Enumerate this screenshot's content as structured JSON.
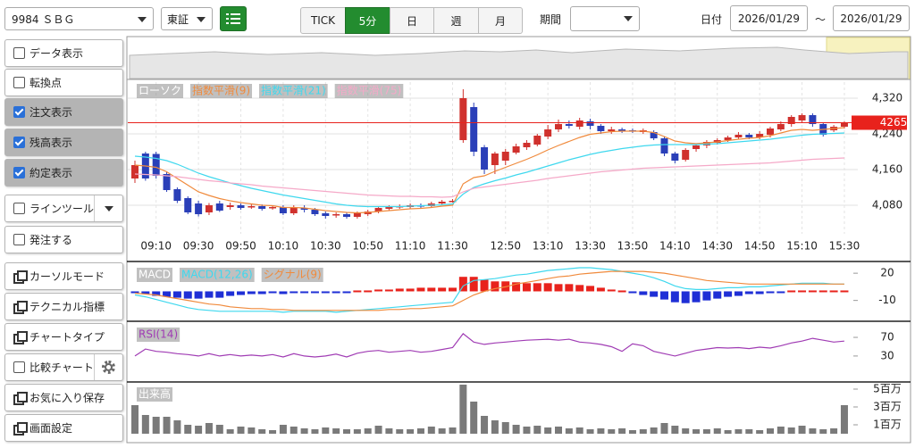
{
  "toolbar": {
    "symbol": "9984 ＳＢＧ",
    "market": "東証",
    "timeframes": [
      {
        "label": "TICK",
        "active": false
      },
      {
        "label": "5分",
        "active": true
      },
      {
        "label": "日",
        "active": false
      },
      {
        "label": "週",
        "active": false
      },
      {
        "label": "月",
        "active": false
      }
    ],
    "period_label": "期間",
    "date_label": "日付",
    "date_from": "2026/01/29",
    "date_separator": "～",
    "date_to": "2026/01/29"
  },
  "sidebar": {
    "buttons": [
      {
        "label": "データ表示",
        "kind": "check",
        "checked": false
      },
      {
        "label": "転換点",
        "kind": "check",
        "checked": false
      },
      {
        "label": "注文表示",
        "kind": "check",
        "checked": true
      },
      {
        "label": "残高表示",
        "kind": "check",
        "checked": true
      },
      {
        "label": "約定表示",
        "kind": "check",
        "checked": true
      },
      {
        "label": "ラインツール",
        "kind": "check",
        "checked": false,
        "extra": "dropdown"
      },
      {
        "label": "発注する",
        "kind": "check",
        "checked": false
      },
      {
        "label": "カーソルモード",
        "kind": "window"
      },
      {
        "label": "テクニカル指標",
        "kind": "window"
      },
      {
        "label": "チャートタイプ",
        "kind": "window"
      },
      {
        "label": "比較チャート",
        "kind": "check",
        "checked": false,
        "extra": "gear"
      },
      {
        "label": "お気に入り保存",
        "kind": "window"
      },
      {
        "label": "画面設定",
        "kind": "window"
      }
    ]
  },
  "chart_data": [
    {
      "type": "candlestick",
      "categories": [
        null,
        null,
        "09:10",
        null,
        null,
        null,
        "09:30",
        null,
        null,
        null,
        "09:50",
        null,
        null,
        null,
        "10:10",
        null,
        null,
        null,
        "10:30",
        null,
        null,
        null,
        "10:50",
        null,
        null,
        null,
        "11:10",
        null,
        null,
        null,
        "11:30",
        null,
        null,
        null,
        null,
        "12:50",
        null,
        null,
        null,
        "13:10",
        null,
        null,
        null,
        "13:30",
        null,
        null,
        null,
        "13:50",
        null,
        null,
        null,
        "14:10",
        null,
        null,
        null,
        "14:30",
        null,
        null,
        null,
        "14:50",
        null,
        null,
        null,
        "15:10",
        null,
        null,
        null,
        "15:30"
      ],
      "series": [
        {
          "name": "ローソク",
          "up_color": "#d0312d",
          "down_color": "#2a3fb8",
          "open": [
            4140,
            4196,
            4195,
            4150,
            4116,
            4096,
            4084,
            4064,
            4084,
            4076,
            4080,
            4076,
            4078,
            4074,
            4076,
            4062,
            4074,
            4070,
            4062,
            4058,
            4060,
            4054,
            4060,
            4066,
            4072,
            4076,
            4076,
            4080,
            4078,
            4084,
            4088,
            4226,
            4300,
            4210,
            4170,
            4180,
            4198,
            4210,
            4216,
            4234,
            4250,
            4262,
            4256,
            4268,
            4258,
            4246,
            4250,
            4248,
            4244,
            4244,
            4230,
            4196,
            4182,
            4206,
            4214,
            4220,
            4226,
            4232,
            4238,
            4232,
            4238,
            4250,
            4262,
            4270,
            4282,
            4262,
            4248,
            4256
          ],
          "high": [
            4180,
            4200,
            4200,
            4155,
            4120,
            4100,
            4090,
            4085,
            4090,
            4086,
            4084,
            4082,
            4082,
            4080,
            4080,
            4080,
            4080,
            4074,
            4066,
            4064,
            4064,
            4066,
            4070,
            4078,
            4080,
            4082,
            4084,
            4084,
            4088,
            4092,
            4094,
            4340,
            4310,
            4215,
            4200,
            4206,
            4218,
            4226,
            4240,
            4260,
            4272,
            4270,
            4276,
            4274,
            4262,
            4256,
            4254,
            4252,
            4252,
            4248,
            4234,
            4200,
            4208,
            4218,
            4226,
            4230,
            4236,
            4244,
            4242,
            4246,
            4256,
            4268,
            4282,
            4286,
            4286,
            4266,
            4260,
            4268
          ],
          "low": [
            4130,
            4135,
            4140,
            4110,
            4085,
            4060,
            4055,
            4058,
            4065,
            4070,
            4070,
            4072,
            4068,
            4070,
            4058,
            4058,
            4064,
            4056,
            4050,
            4052,
            4050,
            4050,
            4056,
            4062,
            4068,
            4072,
            4072,
            4074,
            4074,
            4080,
            4086,
            4220,
            4190,
            4150,
            4150,
            4170,
            4194,
            4204,
            4212,
            4228,
            4244,
            4252,
            4250,
            4250,
            4240,
            4240,
            4242,
            4242,
            4240,
            4226,
            4190,
            4174,
            4178,
            4200,
            4208,
            4216,
            4222,
            4228,
            4228,
            4228,
            4232,
            4246,
            4256,
            4264,
            4256,
            4234,
            4244,
            4252
          ],
          "close": [
            4170,
            4140,
            4146,
            4114,
            4090,
            4064,
            4060,
            4080,
            4068,
            4080,
            4074,
            4078,
            4072,
            4076,
            4062,
            4074,
            4070,
            4060,
            4056,
            4060,
            4054,
            4062,
            4066,
            4074,
            4076,
            4078,
            4080,
            4078,
            4084,
            4088,
            4090,
            4320,
            4200,
            4160,
            4196,
            4200,
            4212,
            4220,
            4236,
            4250,
            4262,
            4258,
            4270,
            4258,
            4246,
            4250,
            4248,
            4246,
            4248,
            4230,
            4196,
            4180,
            4204,
            4214,
            4222,
            4226,
            4232,
            4238,
            4232,
            4240,
            4252,
            4262,
            4278,
            4282,
            4262,
            4238,
            4256,
            4265
          ]
        },
        {
          "name": "指数平滑(9)",
          "color": "#f08a3c",
          "values": [
            4170,
            4168,
            4165,
            4155,
            4140,
            4125,
            4110,
            4102,
            4095,
            4090,
            4086,
            4083,
            4080,
            4079,
            4075,
            4075,
            4074,
            4071,
            4068,
            4066,
            4064,
            4063,
            4064,
            4066,
            4068,
            4070,
            4072,
            4073,
            4075,
            4078,
            4080,
            4128,
            4142,
            4146,
            4156,
            4165,
            4174,
            4183,
            4193,
            4204,
            4214,
            4223,
            4232,
            4239,
            4242,
            4245,
            4246,
            4246,
            4246,
            4243,
            4234,
            4224,
            4220,
            4218,
            4220,
            4222,
            4225,
            4228,
            4230,
            4232,
            4236,
            4242,
            4248,
            4250,
            4248,
            4250,
            4252,
            4254
          ]
        },
        {
          "name": "指数平滑(21)",
          "color": "#3fd8ee",
          "values": [
            4190,
            4188,
            4185,
            4180,
            4172,
            4162,
            4152,
            4144,
            4137,
            4130,
            4124,
            4118,
            4113,
            4108,
            4103,
            4099,
            4095,
            4091,
            4087,
            4083,
            4080,
            4078,
            4077,
            4077,
            4077,
            4077,
            4078,
            4079,
            4080,
            4081,
            4083,
            4105,
            4120,
            4128,
            4135,
            4141,
            4148,
            4154,
            4161,
            4168,
            4175,
            4182,
            4188,
            4194,
            4199,
            4203,
            4207,
            4210,
            4213,
            4215,
            4216,
            4216,
            4216,
            4216,
            4217,
            4218,
            4220,
            4222,
            4224,
            4226,
            4228,
            4231,
            4234,
            4237,
            4239,
            4240,
            4241,
            4242
          ]
        },
        {
          "name": "指数平滑(75)",
          "color": "#f5a9c8",
          "values": [
            4150,
            4149,
            4148,
            4146,
            4144,
            4141,
            4138,
            4135,
            4133,
            4130,
            4128,
            4126,
            4123,
            4121,
            4119,
            4117,
            4115,
            4113,
            4111,
            4109,
            4107,
            4105,
            4103,
            4102,
            4101,
            4100,
            4100,
            4099,
            4099,
            4098,
            4099,
            4110,
            4118,
            4121,
            4124,
            4127,
            4130,
            4133,
            4136,
            4140,
            4143,
            4146,
            4149,
            4152,
            4155,
            4157,
            4159,
            4161,
            4163,
            4164,
            4165,
            4166,
            4167,
            4168,
            4169,
            4170,
            4171,
            4172,
            4173,
            4174,
            4175,
            4177,
            4179,
            4181,
            4183,
            4184,
            4185,
            4186
          ]
        }
      ],
      "ylim": [
        4016,
        4356
      ],
      "yticks": [
        {
          "value": 4080,
          "label": "4,080"
        },
        {
          "value": 4160,
          "label": "4,160"
        },
        {
          "value": 4240,
          "label": "4,240"
        },
        {
          "value": 4320,
          "label": "4,320"
        }
      ],
      "last_price": 4265,
      "last_price_color": "#e8221c",
      "grid": true
    },
    {
      "type": "macd",
      "series": [
        {
          "name": "MACD",
          "type": "histogram",
          "up_color": "#e8221c",
          "down_color": "#1f2fd6",
          "values": [
            -2,
            -3,
            -5,
            -6,
            -7,
            -8,
            -8,
            -7,
            -7,
            -5,
            -4,
            -3,
            -3,
            -2,
            -3,
            -1,
            -1,
            -1,
            -1,
            -2,
            -1,
            0,
            1,
            2,
            2,
            3,
            3,
            4,
            4,
            4,
            4,
            16,
            16,
            13,
            11,
            11,
            10,
            9,
            9,
            9,
            8,
            8,
            7,
            6,
            4,
            2,
            0,
            -2,
            -4,
            -6,
            -9,
            -12,
            -13,
            -12,
            -10,
            -8,
            -6,
            -5,
            -3,
            -3,
            -2,
            -1,
            0,
            1,
            1,
            1,
            0,
            0
          ]
        },
        {
          "name": "MACD(12,26)",
          "color": "#3fd8ee",
          "values": [
            -4,
            -6,
            -9,
            -12,
            -15,
            -18,
            -20,
            -21,
            -22,
            -22,
            -22,
            -22,
            -22,
            -22,
            -23,
            -22,
            -22,
            -22,
            -22,
            -23,
            -22,
            -21,
            -20,
            -19,
            -18,
            -17,
            -16,
            -15,
            -14,
            -13,
            -12,
            6,
            12,
            13,
            14,
            16,
            18,
            19,
            21,
            23,
            24,
            25,
            26,
            26,
            25,
            24,
            22,
            20,
            18,
            15,
            11,
            6,
            3,
            2,
            2,
            3,
            4,
            4,
            5,
            5,
            6,
            7,
            8,
            9,
            9,
            9,
            8,
            8
          ]
        },
        {
          "name": "シグナル(9)",
          "color": "#f08a3c",
          "values": [
            -2,
            -3,
            -4,
            -6,
            -8,
            -10,
            -12,
            -14,
            -15,
            -17,
            -18,
            -19,
            -19,
            -20,
            -20,
            -21,
            -21,
            -21,
            -21,
            -21,
            -21,
            -21,
            -21,
            -21,
            -20,
            -20,
            -19,
            -19,
            -18,
            -17,
            -16,
            -10,
            -4,
            0,
            3,
            5,
            8,
            10,
            12,
            14,
            16,
            17,
            19,
            20,
            21,
            22,
            22,
            22,
            22,
            21,
            20,
            18,
            16,
            14,
            12,
            11,
            10,
            9,
            8,
            8,
            8,
            8,
            8,
            8,
            8,
            8,
            8,
            8
          ]
        }
      ],
      "ylim": [
        -31,
        28
      ],
      "yticks": [
        -10,
        20
      ],
      "grid": false
    },
    {
      "type": "line",
      "series": [
        {
          "name": "RSI(14)",
          "color": "#a03cb4",
          "values": [
            30,
            45,
            40,
            38,
            35,
            33,
            30,
            35,
            30,
            33,
            30,
            32,
            30,
            33,
            28,
            35,
            30,
            28,
            30,
            34,
            28,
            36,
            40,
            42,
            38,
            40,
            42,
            38,
            40,
            44,
            48,
            78,
            60,
            55,
            58,
            60,
            62,
            64,
            65,
            66,
            64,
            66,
            60,
            58,
            55,
            50,
            40,
            56,
            52,
            40,
            35,
            30,
            36,
            42,
            45,
            48,
            47,
            48,
            46,
            49,
            47,
            52,
            58,
            62,
            68,
            64,
            60,
            62
          ]
        }
      ],
      "ylim": [
        -20,
        95
      ],
      "yticks": [
        30,
        70
      ],
      "grid": false
    },
    {
      "type": "bar",
      "series": [
        {
          "name": "出来高",
          "color": "#7a7a7a",
          "values": [
            3.2,
            2.1,
            1.9,
            1.9,
            1.5,
            1.0,
            0.9,
            1.2,
            1.0,
            0.5,
            0.8,
            0.7,
            0.5,
            0.4,
            1.0,
            0.8,
            0.6,
            0.5,
            0.7,
            0.6,
            0.5,
            0.5,
            0.6,
            0.9,
            0.6,
            0.5,
            0.5,
            0.6,
            0.8,
            0.6,
            0.7,
            5.5,
            3.6,
            2.0,
            1.5,
            1.3,
            1.0,
            0.8,
            0.9,
            0.7,
            0.8,
            0.6,
            0.7,
            0.5,
            0.6,
            0.5,
            0.6,
            0.4,
            0.5,
            0.7,
            1.2,
            0.9,
            0.6,
            0.5,
            0.5,
            0.6,
            0.4,
            0.5,
            0.5,
            0.4,
            0.6,
            0.8,
            0.7,
            0.9,
            0.6,
            0.5,
            0.6,
            3.2
          ]
        }
      ],
      "ylim": [
        -0.8,
        5.4
      ],
      "yticks": [
        {
          "value": 1,
          "label": "1百万"
        },
        {
          "value": 3,
          "label": "3百万"
        },
        {
          "value": 5,
          "label": "5百万"
        }
      ],
      "grid": false
    }
  ]
}
